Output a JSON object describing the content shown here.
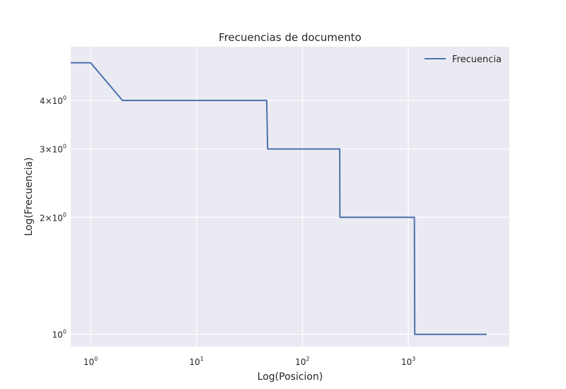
{
  "chart_data": {
    "type": "line",
    "title": "Frecuencias de documento",
    "xlabel": "Log(Posicion)",
    "ylabel": "Log(Frecuencia)",
    "xscale": "log",
    "yscale": "log",
    "xlim": [
      0.65,
      9000
    ],
    "ylim": [
      0.93,
      5.5
    ],
    "grid": true,
    "legend": "top-right",
    "background": "#eaeaf2",
    "x_ticks": [
      {
        "value": 1,
        "base": "10",
        "exp": "0"
      },
      {
        "value": 10,
        "base": "10",
        "exp": "1"
      },
      {
        "value": 100,
        "base": "10",
        "exp": "2"
      },
      {
        "value": 1000,
        "base": "10",
        "exp": "3"
      }
    ],
    "y_ticks": [
      {
        "value": 1,
        "pre": "",
        "base": "10",
        "exp": "0"
      },
      {
        "value": 2,
        "pre": "2×",
        "base": "10",
        "exp": "0"
      },
      {
        "value": 3,
        "pre": "3×",
        "base": "10",
        "exp": "0"
      },
      {
        "value": 4,
        "pre": "4×",
        "base": "10",
        "exp": "0"
      }
    ],
    "series": [
      {
        "name": "Frecuencia",
        "color": "#4c72b0",
        "x": [
          0.65,
          1,
          2,
          46,
          47,
          225,
          226,
          1140,
          1150,
          5500
        ],
        "y": [
          5,
          5,
          4,
          4,
          3,
          3,
          2,
          2,
          1,
          1
        ]
      }
    ]
  }
}
